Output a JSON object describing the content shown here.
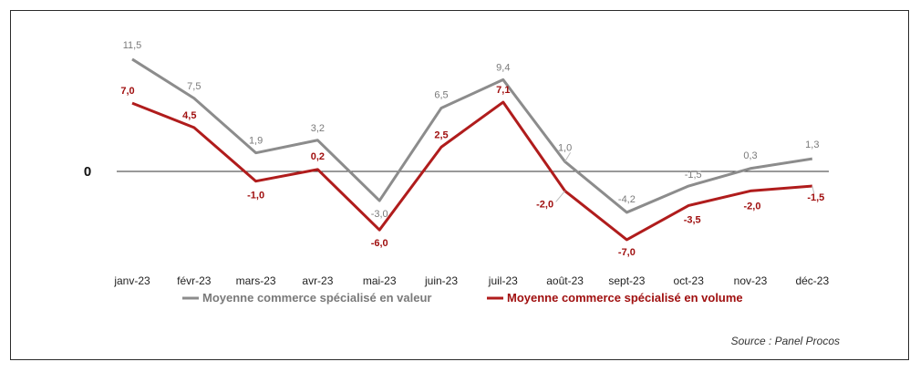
{
  "chart_data": {
    "type": "line",
    "title": "",
    "xlabel": "",
    "ylabel": "",
    "categories": [
      "janv-23",
      "févr-23",
      "mars-23",
      "avr-23",
      "mai-23",
      "juin-23",
      "juil-23",
      "août-23",
      "sept-23",
      "oct-23",
      "nov-23",
      "déc-23"
    ],
    "series": [
      {
        "name": "Moyenne commerce spécialisé en valeur",
        "color": "#8c8c8c",
        "values": [
          11.5,
          7.5,
          1.9,
          3.2,
          -3.0,
          6.5,
          9.4,
          1.0,
          -4.2,
          -1.5,
          0.3,
          1.3
        ],
        "labels": [
          "11,5",
          "7,5",
          "1,9",
          "3,2",
          "-3,0",
          "6,5",
          "9,4",
          "1,0",
          "-4,2",
          "-1,5",
          "0,3",
          "1,3"
        ]
      },
      {
        "name": "Moyenne commerce spécialisé en volume",
        "color": "#b01c1c",
        "values": [
          7.0,
          4.5,
          -1.0,
          0.2,
          -6.0,
          2.5,
          7.1,
          -2.0,
          -7.0,
          -3.5,
          -2.0,
          -1.5
        ],
        "labels": [
          "7,0",
          "4,5",
          "-1,0",
          "0,2",
          "-6,0",
          "2,5",
          "7,1",
          "-2,0",
          "-7,0",
          "-3,5",
          "-2,0",
          "-1,5"
        ]
      }
    ],
    "y_axis_label": "0",
    "ylim": [
      -8,
      12.5
    ],
    "grid": false,
    "legend_position": "bottom",
    "source": "Source : Panel Procos"
  }
}
